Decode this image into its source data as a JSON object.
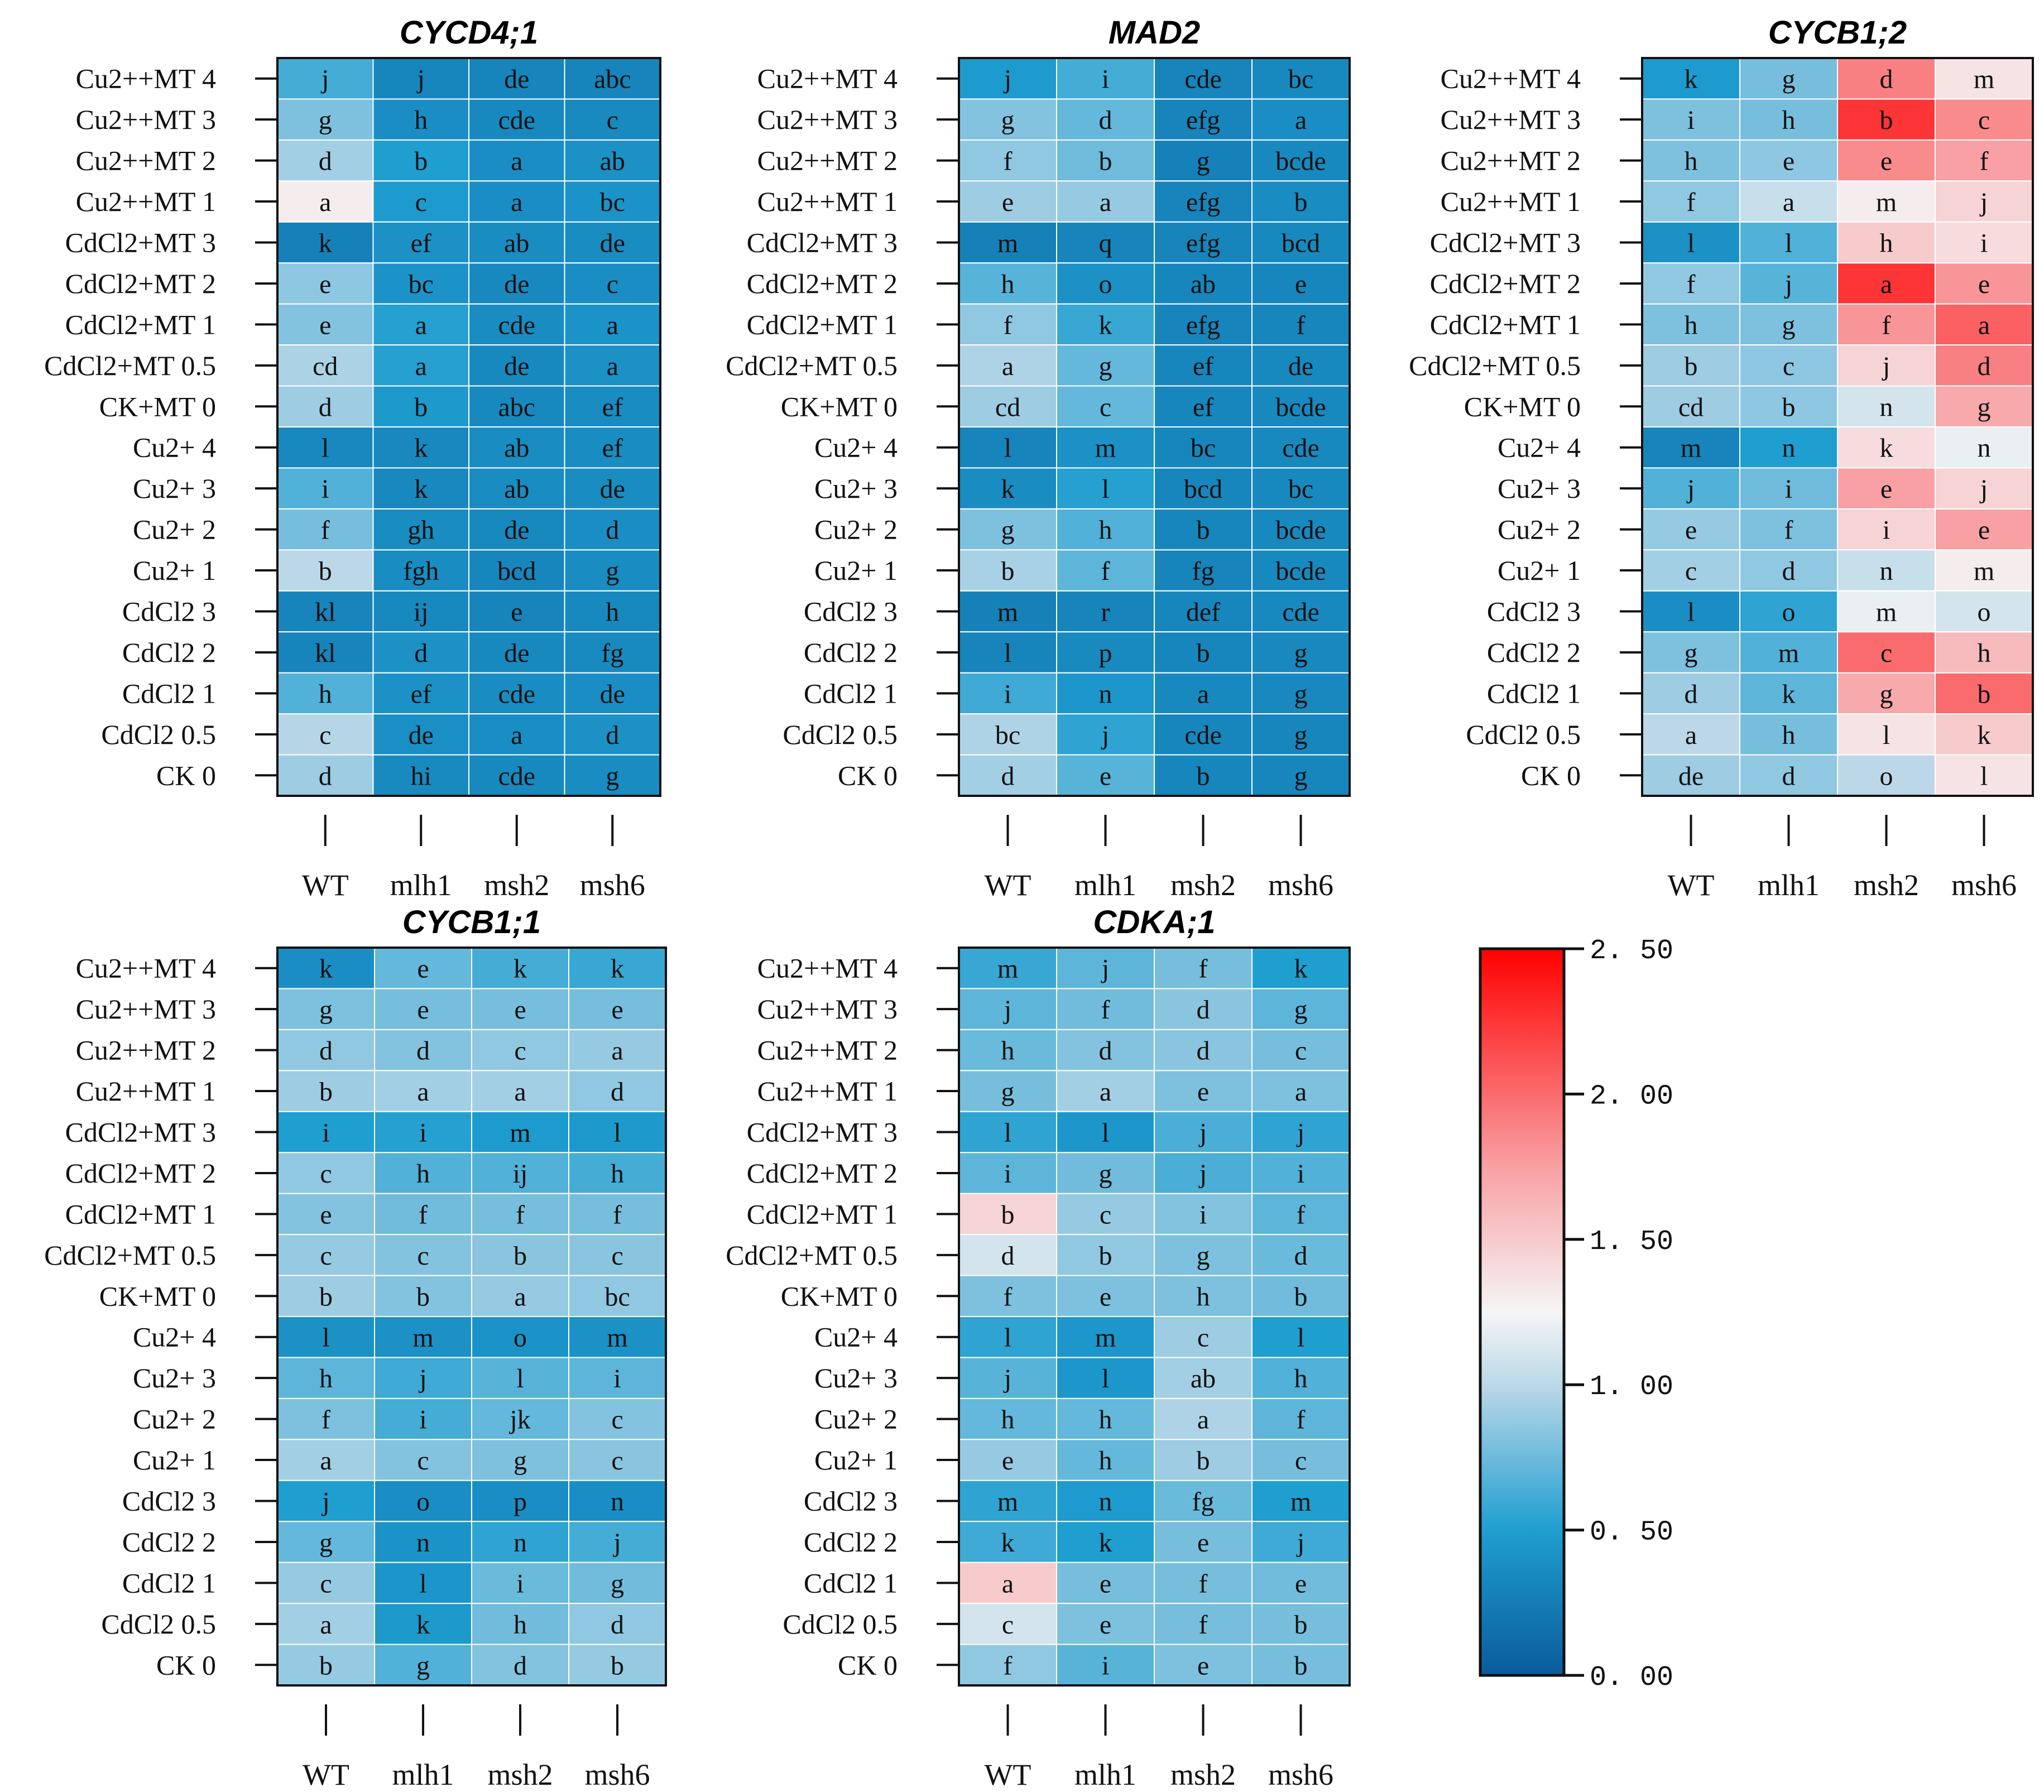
{
  "chart_data": [
    {
      "type": "heatmap",
      "title": "CYCD4;1",
      "rows": [
        "Cu2++MT 4",
        "Cu2++MT 3",
        "Cu2++MT 2",
        "Cu2++MT 1",
        "CdCl2+MT 3",
        "CdCl2+MT 2",
        "CdCl2+MT 1",
        "CdCl2+MT 0.5",
        "CK+MT 0",
        "Cu2+ 4",
        "Cu2+ 3",
        "Cu2+ 2",
        "Cu2+ 1",
        "CdCl2 3",
        "CdCl2 2",
        "CdCl2 1",
        "CdCl2 0.5",
        "CK 0"
      ],
      "columns": [
        "WT",
        "mlh1",
        "msh2",
        "msh6"
      ],
      "values": [
        [
          0.62,
          0.32,
          0.3,
          0.3
        ],
        [
          0.8,
          0.38,
          0.34,
          0.35
        ],
        [
          0.92,
          0.5,
          0.38,
          0.4
        ],
        [
          1.3,
          0.48,
          0.38,
          0.42
        ],
        [
          0.28,
          0.4,
          0.36,
          0.36
        ],
        [
          0.85,
          0.42,
          0.34,
          0.38
        ],
        [
          0.82,
          0.52,
          0.36,
          0.42
        ],
        [
          0.95,
          0.52,
          0.34,
          0.4
        ],
        [
          0.9,
          0.46,
          0.34,
          0.36
        ],
        [
          0.33,
          0.33,
          0.36,
          0.36
        ],
        [
          0.66,
          0.33,
          0.36,
          0.36
        ],
        [
          0.78,
          0.36,
          0.34,
          0.38
        ],
        [
          1.0,
          0.36,
          0.32,
          0.36
        ],
        [
          0.3,
          0.34,
          0.3,
          0.34
        ],
        [
          0.3,
          0.4,
          0.34,
          0.35
        ],
        [
          0.66,
          0.4,
          0.36,
          0.38
        ],
        [
          0.98,
          0.39,
          0.38,
          0.4
        ],
        [
          0.9,
          0.35,
          0.34,
          0.36
        ]
      ],
      "letters": [
        [
          "j",
          "j",
          "de",
          "abc"
        ],
        [
          "g",
          "h",
          "cde",
          "c"
        ],
        [
          "d",
          "b",
          "a",
          "ab"
        ],
        [
          "a",
          "c",
          "a",
          "bc"
        ],
        [
          "k",
          "ef",
          "ab",
          "de"
        ],
        [
          "e",
          "bc",
          "de",
          "c"
        ],
        [
          "e",
          "a",
          "cde",
          "a"
        ],
        [
          "cd",
          "a",
          "de",
          "a"
        ],
        [
          "d",
          "b",
          "abc",
          "ef"
        ],
        [
          "l",
          "k",
          "ab",
          "ef"
        ],
        [
          "i",
          "k",
          "ab",
          "de"
        ],
        [
          "f",
          "gh",
          "de",
          "d"
        ],
        [
          "b",
          "fgh",
          "bcd",
          "g"
        ],
        [
          "kl",
          "ij",
          "e",
          "h"
        ],
        [
          "kl",
          "d",
          "de",
          "fg"
        ],
        [
          "h",
          "ef",
          "cde",
          "de"
        ],
        [
          "c",
          "de",
          "a",
          "d"
        ],
        [
          "d",
          "hi",
          "cde",
          "g"
        ]
      ]
    },
    {
      "type": "heatmap",
      "title": "MAD2",
      "rows": [
        "Cu2++MT 4",
        "Cu2++MT 3",
        "Cu2++MT 2",
        "Cu2++MT 1",
        "CdCl2+MT 3",
        "CdCl2+MT 2",
        "CdCl2+MT 1",
        "CdCl2+MT 0.5",
        "CK+MT 0",
        "Cu2+ 4",
        "Cu2+ 3",
        "Cu2+ 2",
        "Cu2+ 1",
        "CdCl2 3",
        "CdCl2 2",
        "CdCl2 1",
        "CdCl2 0.5",
        "CK 0"
      ],
      "columns": [
        "WT",
        "mlh1",
        "msh2",
        "msh6"
      ],
      "values": [
        [
          0.48,
          0.62,
          0.3,
          0.34
        ],
        [
          0.82,
          0.72,
          0.3,
          0.38
        ],
        [
          0.86,
          0.75,
          0.28,
          0.34
        ],
        [
          0.9,
          0.88,
          0.3,
          0.36
        ],
        [
          0.28,
          0.3,
          0.3,
          0.34
        ],
        [
          0.68,
          0.4,
          0.32,
          0.32
        ],
        [
          0.86,
          0.58,
          0.3,
          0.32
        ],
        [
          0.96,
          0.72,
          0.32,
          0.34
        ],
        [
          0.9,
          0.72,
          0.32,
          0.34
        ],
        [
          0.3,
          0.4,
          0.32,
          0.34
        ],
        [
          0.36,
          0.52,
          0.32,
          0.34
        ],
        [
          0.8,
          0.66,
          0.32,
          0.34
        ],
        [
          0.94,
          0.7,
          0.3,
          0.34
        ],
        [
          0.28,
          0.3,
          0.32,
          0.34
        ],
        [
          0.3,
          0.35,
          0.32,
          0.33
        ],
        [
          0.6,
          0.45,
          0.34,
          0.33
        ],
        [
          0.96,
          0.55,
          0.32,
          0.32
        ],
        [
          0.92,
          0.68,
          0.32,
          0.32
        ]
      ],
      "letters": [
        [
          "j",
          "i",
          "cde",
          "bc"
        ],
        [
          "g",
          "d",
          "efg",
          "a"
        ],
        [
          "f",
          "b",
          "g",
          "bcde"
        ],
        [
          "e",
          "a",
          "efg",
          "b"
        ],
        [
          "m",
          "q",
          "efg",
          "bcd"
        ],
        [
          "h",
          "o",
          "ab",
          "e"
        ],
        [
          "f",
          "k",
          "efg",
          "f"
        ],
        [
          "a",
          "g",
          "ef",
          "de"
        ],
        [
          "cd",
          "c",
          "ef",
          "bcde"
        ],
        [
          "l",
          "m",
          "bc",
          "cde"
        ],
        [
          "k",
          "l",
          "bcd",
          "bc"
        ],
        [
          "g",
          "h",
          "b",
          "bcde"
        ],
        [
          "b",
          "f",
          "fg",
          "bcde"
        ],
        [
          "m",
          "r",
          "def",
          "cde"
        ],
        [
          "l",
          "p",
          "b",
          "g"
        ],
        [
          "i",
          "n",
          "a",
          "g"
        ],
        [
          "bc",
          "j",
          "cde",
          "g"
        ],
        [
          "d",
          "e",
          "b",
          "g"
        ]
      ]
    },
    {
      "type": "heatmap",
      "title": "CYCB1;2",
      "rows": [
        "Cu2++MT 4",
        "Cu2++MT 3",
        "Cu2++MT 2",
        "Cu2++MT 1",
        "CdCl2+MT 3",
        "CdCl2+MT 2",
        "CdCl2+MT 1",
        "CdCl2+MT 0.5",
        "CK+MT 0",
        "Cu2+ 4",
        "Cu2+ 3",
        "Cu2+ 2",
        "Cu2+ 1",
        "CdCl2 3",
        "CdCl2 2",
        "CdCl2 1",
        "CdCl2 0.5",
        "CK 0"
      ],
      "columns": [
        "WT",
        "mlh1",
        "msh2",
        "msh6"
      ],
      "values": [
        [
          0.48,
          0.78,
          1.9,
          1.35
        ],
        [
          0.8,
          0.78,
          2.25,
          1.85
        ],
        [
          0.8,
          0.85,
          1.85,
          1.75
        ],
        [
          0.86,
          1.05,
          1.3,
          1.45
        ],
        [
          0.4,
          0.66,
          1.5,
          1.4
        ],
        [
          0.86,
          0.68,
          2.25,
          1.8
        ],
        [
          0.8,
          0.8,
          1.8,
          2.05
        ],
        [
          0.9,
          0.85,
          1.45,
          1.9
        ],
        [
          0.9,
          0.85,
          1.1,
          1.7
        ],
        [
          0.3,
          0.5,
          1.4,
          1.2
        ],
        [
          0.66,
          0.75,
          1.75,
          1.45
        ],
        [
          0.88,
          0.8,
          1.45,
          1.75
        ],
        [
          0.92,
          0.86,
          1.05,
          1.3
        ],
        [
          0.38,
          0.55,
          1.2,
          1.1
        ],
        [
          0.8,
          0.66,
          2.0,
          1.6
        ],
        [
          0.9,
          0.7,
          1.7,
          2.0
        ],
        [
          1.0,
          0.78,
          1.35,
          1.5
        ],
        [
          0.9,
          0.86,
          1.0,
          1.35
        ]
      ],
      "letters": [
        [
          "k",
          "g",
          "d",
          "m"
        ],
        [
          "i",
          "h",
          "b",
          "c"
        ],
        [
          "h",
          "e",
          "e",
          "f"
        ],
        [
          "f",
          "a",
          "m",
          "j"
        ],
        [
          "l",
          "l",
          "h",
          "i"
        ],
        [
          "f",
          "j",
          "a",
          "e"
        ],
        [
          "h",
          "g",
          "f",
          "a"
        ],
        [
          "b",
          "c",
          "j",
          "d"
        ],
        [
          "cd",
          "b",
          "n",
          "g"
        ],
        [
          "m",
          "n",
          "k",
          "n"
        ],
        [
          "j",
          "i",
          "e",
          "j"
        ],
        [
          "e",
          "f",
          "i",
          "e"
        ],
        [
          "c",
          "d",
          "n",
          "m"
        ],
        [
          "l",
          "o",
          "m",
          "o"
        ],
        [
          "g",
          "m",
          "c",
          "h"
        ],
        [
          "d",
          "k",
          "g",
          "b"
        ],
        [
          "a",
          "h",
          "l",
          "k"
        ],
        [
          "de",
          "d",
          "o",
          "l"
        ]
      ]
    },
    {
      "type": "heatmap",
      "title": "CYCB1;1",
      "rows": [
        "Cu2++MT 4",
        "Cu2++MT 3",
        "Cu2++MT 2",
        "Cu2++MT 1",
        "CdCl2+MT 3",
        "CdCl2+MT 2",
        "CdCl2+MT 1",
        "CdCl2+MT 0.5",
        "CK+MT 0",
        "Cu2+ 4",
        "Cu2+ 3",
        "Cu2+ 2",
        "Cu2+ 1",
        "CdCl2 3",
        "CdCl2 2",
        "CdCl2 1",
        "CdCl2 0.5",
        "CK 0"
      ],
      "columns": [
        "WT",
        "mlh1",
        "msh2",
        "msh6"
      ],
      "values": [
        [
          0.38,
          0.72,
          0.62,
          0.58
        ],
        [
          0.8,
          0.78,
          0.78,
          0.78
        ],
        [
          0.86,
          0.82,
          0.86,
          0.88
        ],
        [
          0.9,
          0.92,
          0.92,
          0.86
        ],
        [
          0.5,
          0.52,
          0.48,
          0.46
        ],
        [
          0.86,
          0.66,
          0.66,
          0.62
        ],
        [
          0.82,
          0.76,
          0.78,
          0.78
        ],
        [
          0.88,
          0.82,
          0.84,
          0.84
        ],
        [
          0.9,
          0.82,
          0.88,
          0.86
        ],
        [
          0.4,
          0.4,
          0.42,
          0.4
        ],
        [
          0.7,
          0.6,
          0.68,
          0.7
        ],
        [
          0.8,
          0.62,
          0.72,
          0.82
        ],
        [
          0.92,
          0.82,
          0.8,
          0.84
        ],
        [
          0.5,
          0.38,
          0.38,
          0.38
        ],
        [
          0.72,
          0.42,
          0.55,
          0.62
        ],
        [
          0.88,
          0.44,
          0.74,
          0.76
        ],
        [
          0.92,
          0.46,
          0.76,
          0.86
        ],
        [
          0.88,
          0.66,
          0.82,
          0.88
        ]
      ],
      "letters": [
        [
          "k",
          "e",
          "k",
          "k"
        ],
        [
          "g",
          "e",
          "e",
          "e"
        ],
        [
          "d",
          "d",
          "c",
          "a"
        ],
        [
          "b",
          "a",
          "a",
          "d"
        ],
        [
          "i",
          "i",
          "m",
          "l"
        ],
        [
          "c",
          "h",
          "ij",
          "h"
        ],
        [
          "e",
          "f",
          "f",
          "f"
        ],
        [
          "c",
          "c",
          "b",
          "c"
        ],
        [
          "b",
          "b",
          "a",
          "bc"
        ],
        [
          "l",
          "m",
          "o",
          "m"
        ],
        [
          "h",
          "j",
          "l",
          "i"
        ],
        [
          "f",
          "i",
          "jk",
          "c"
        ],
        [
          "a",
          "c",
          "g",
          "c"
        ],
        [
          "j",
          "o",
          "p",
          "n"
        ],
        [
          "g",
          "n",
          "n",
          "j"
        ],
        [
          "c",
          "l",
          "i",
          "g"
        ],
        [
          "a",
          "k",
          "h",
          "d"
        ],
        [
          "b",
          "g",
          "d",
          "b"
        ]
      ]
    },
    {
      "type": "heatmap",
      "title": "CDKA;1",
      "rows": [
        "Cu2++MT 4",
        "Cu2++MT 3",
        "Cu2++MT 2",
        "Cu2++MT 1",
        "CdCl2+MT 3",
        "CdCl2+MT 2",
        "CdCl2+MT 1",
        "CdCl2+MT 0.5",
        "CK+MT 0",
        "Cu2+ 4",
        "Cu2+ 3",
        "Cu2+ 2",
        "Cu2+ 1",
        "CdCl2 3",
        "CdCl2 2",
        "CdCl2 1",
        "CdCl2 0.5",
        "CK 0"
      ],
      "columns": [
        "WT",
        "mlh1",
        "msh2",
        "msh6"
      ],
      "values": [
        [
          0.58,
          0.7,
          0.78,
          0.5
        ],
        [
          0.7,
          0.76,
          0.84,
          0.7
        ],
        [
          0.74,
          0.82,
          0.84,
          0.78
        ],
        [
          0.78,
          0.92,
          0.8,
          0.8
        ],
        [
          0.55,
          0.45,
          0.64,
          0.55
        ],
        [
          0.7,
          0.76,
          0.64,
          0.66
        ],
        [
          1.45,
          0.88,
          0.82,
          0.7
        ],
        [
          1.1,
          0.86,
          0.8,
          0.74
        ],
        [
          0.8,
          0.8,
          0.8,
          0.76
        ],
        [
          0.55,
          0.45,
          0.9,
          0.5
        ],
        [
          0.68,
          0.45,
          0.92,
          0.66
        ],
        [
          0.72,
          0.72,
          0.96,
          0.7
        ],
        [
          0.88,
          0.72,
          0.9,
          0.78
        ],
        [
          0.55,
          0.48,
          0.74,
          0.5
        ],
        [
          0.6,
          0.5,
          0.78,
          0.6
        ],
        [
          1.5,
          0.78,
          0.78,
          0.76
        ],
        [
          1.1,
          0.8,
          0.78,
          0.78
        ],
        [
          0.86,
          0.68,
          0.8,
          0.78
        ]
      ],
      "letters": [
        [
          "m",
          "j",
          "f",
          "k"
        ],
        [
          "j",
          "f",
          "d",
          "g"
        ],
        [
          "h",
          "d",
          "d",
          "c"
        ],
        [
          "g",
          "a",
          "e",
          "a"
        ],
        [
          "l",
          "l",
          "j",
          "j"
        ],
        [
          "i",
          "g",
          "j",
          "i"
        ],
        [
          "b",
          "c",
          "i",
          "f"
        ],
        [
          "d",
          "b",
          "g",
          "d"
        ],
        [
          "f",
          "e",
          "h",
          "b"
        ],
        [
          "l",
          "m",
          "c",
          "l"
        ],
        [
          "j",
          "l",
          "ab",
          "h"
        ],
        [
          "h",
          "h",
          "a",
          "f"
        ],
        [
          "e",
          "h",
          "b",
          "c"
        ],
        [
          "m",
          "n",
          "fg",
          "m"
        ],
        [
          "k",
          "k",
          "e",
          "j"
        ],
        [
          "a",
          "e",
          "f",
          "e"
        ],
        [
          "c",
          "e",
          "f",
          "b"
        ],
        [
          "f",
          "i",
          "e",
          "b"
        ]
      ]
    }
  ],
  "colorbar": {
    "ticks": [
      "2. 50",
      "2. 00",
      "1. 50",
      "1. 00",
      "0. 50",
      "0. 00"
    ],
    "tick_values": [
      2.5,
      2.0,
      1.5,
      1.0,
      0.5,
      0.0
    ],
    "range": [
      0,
      2.5
    ],
    "stops": [
      {
        "value": 0.0,
        "color": "#0a5c9c"
      },
      {
        "value": 0.5,
        "color": "#1f9ed0"
      },
      {
        "value": 1.0,
        "color": "#bcd8e8"
      },
      {
        "value": 1.25,
        "color": "#f5f5f5"
      },
      {
        "value": 1.75,
        "color": "#f8a0a3"
      },
      {
        "value": 2.5,
        "color": "#ff0000"
      }
    ]
  }
}
